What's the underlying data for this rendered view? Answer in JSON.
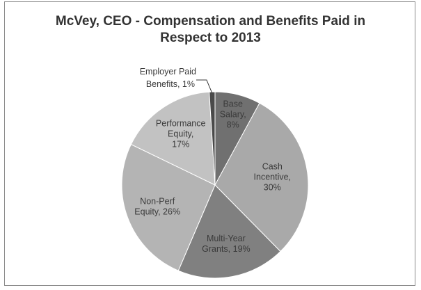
{
  "chart_data": {
    "type": "pie",
    "title_lines": [
      "McVey, CEO - Compensation and Benefits Paid in",
      "Respect to 2013"
    ],
    "slices": [
      {
        "label_lines": [
          "Base",
          "Salary,",
          "8%"
        ],
        "value": 8,
        "color": "#707070"
      },
      {
        "label_lines": [
          "Cash",
          "Incentive,",
          "30%"
        ],
        "value": 30,
        "color": "#a9a9a9"
      },
      {
        "label_lines": [
          "Multi-Year",
          "Grants, 19%"
        ],
        "value": 19,
        "color": "#808080"
      },
      {
        "label_lines": [
          "Non-Perf",
          "Equity, 26%"
        ],
        "value": 26,
        "color": "#b4b4b4"
      },
      {
        "label_lines": [
          "Performance",
          "Equity,",
          "17%"
        ],
        "value": 17,
        "color": "#c2c2c2"
      },
      {
        "label_lines": [
          "Employer Paid",
          "Benefits, 1%"
        ],
        "value": 1,
        "color": "#4a4a4a"
      }
    ],
    "start_angle_deg": 0,
    "direction": "clockwise",
    "legend": "none",
    "outside_label_slices": [
      "Employer Paid Benefits"
    ]
  }
}
